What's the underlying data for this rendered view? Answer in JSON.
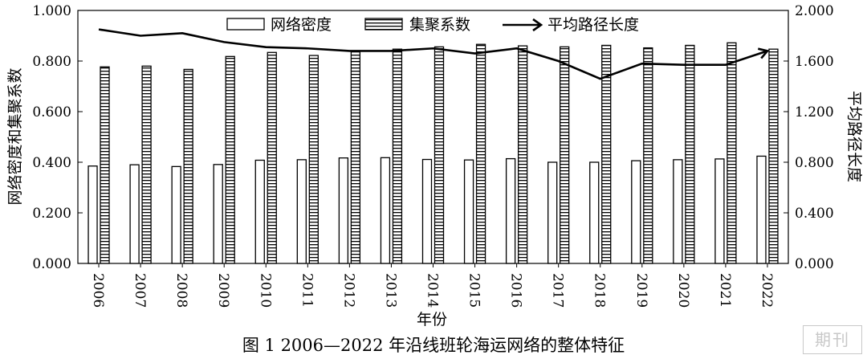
{
  "chart_data": {
    "type": "bar",
    "categories": [
      "2006",
      "2007",
      "2008",
      "2009",
      "2010",
      "2011",
      "2012",
      "2013",
      "2014",
      "2015",
      "2016",
      "2017",
      "2018",
      "2019",
      "2020",
      "2021",
      "2022"
    ],
    "series": [
      {
        "name": "网络密度",
        "type": "bar",
        "values": [
          0.385,
          0.39,
          0.383,
          0.391,
          0.408,
          0.41,
          0.417,
          0.418,
          0.411,
          0.409,
          0.414,
          0.4,
          0.4,
          0.406,
          0.41,
          0.413,
          0.424
        ]
      },
      {
        "name": "集聚系数",
        "type": "bar",
        "values": [
          0.777,
          0.78,
          0.767,
          0.818,
          0.834,
          0.822,
          0.84,
          0.847,
          0.856,
          0.866,
          0.86,
          0.856,
          0.862,
          0.852,
          0.862,
          0.872,
          0.847
        ]
      },
      {
        "name": "平均路径长度",
        "type": "line",
        "axis": "right",
        "values": [
          1.85,
          1.8,
          1.82,
          1.75,
          1.71,
          1.7,
          1.68,
          1.68,
          1.7,
          1.66,
          1.7,
          1.6,
          1.46,
          1.58,
          1.57,
          1.57,
          1.68
        ]
      }
    ],
    "xlabel": "年份",
    "ylabel": "网络密度和集聚系数",
    "y2label": "平均路径长度",
    "ylim": [
      0,
      1.0
    ],
    "y2lim": [
      0,
      2.0
    ],
    "yticks": [
      "0.000",
      "0.200",
      "0.400",
      "0.600",
      "0.800",
      "1.000"
    ],
    "y2ticks": [
      "0.000",
      "0.400",
      "0.800",
      "1.200",
      "1.600",
      "2.000"
    ],
    "legend_position": "top-center",
    "grid": false
  },
  "caption": "图 1    2006—2022 年沿线班轮海运网络的整体特征",
  "watermark": "期刊"
}
